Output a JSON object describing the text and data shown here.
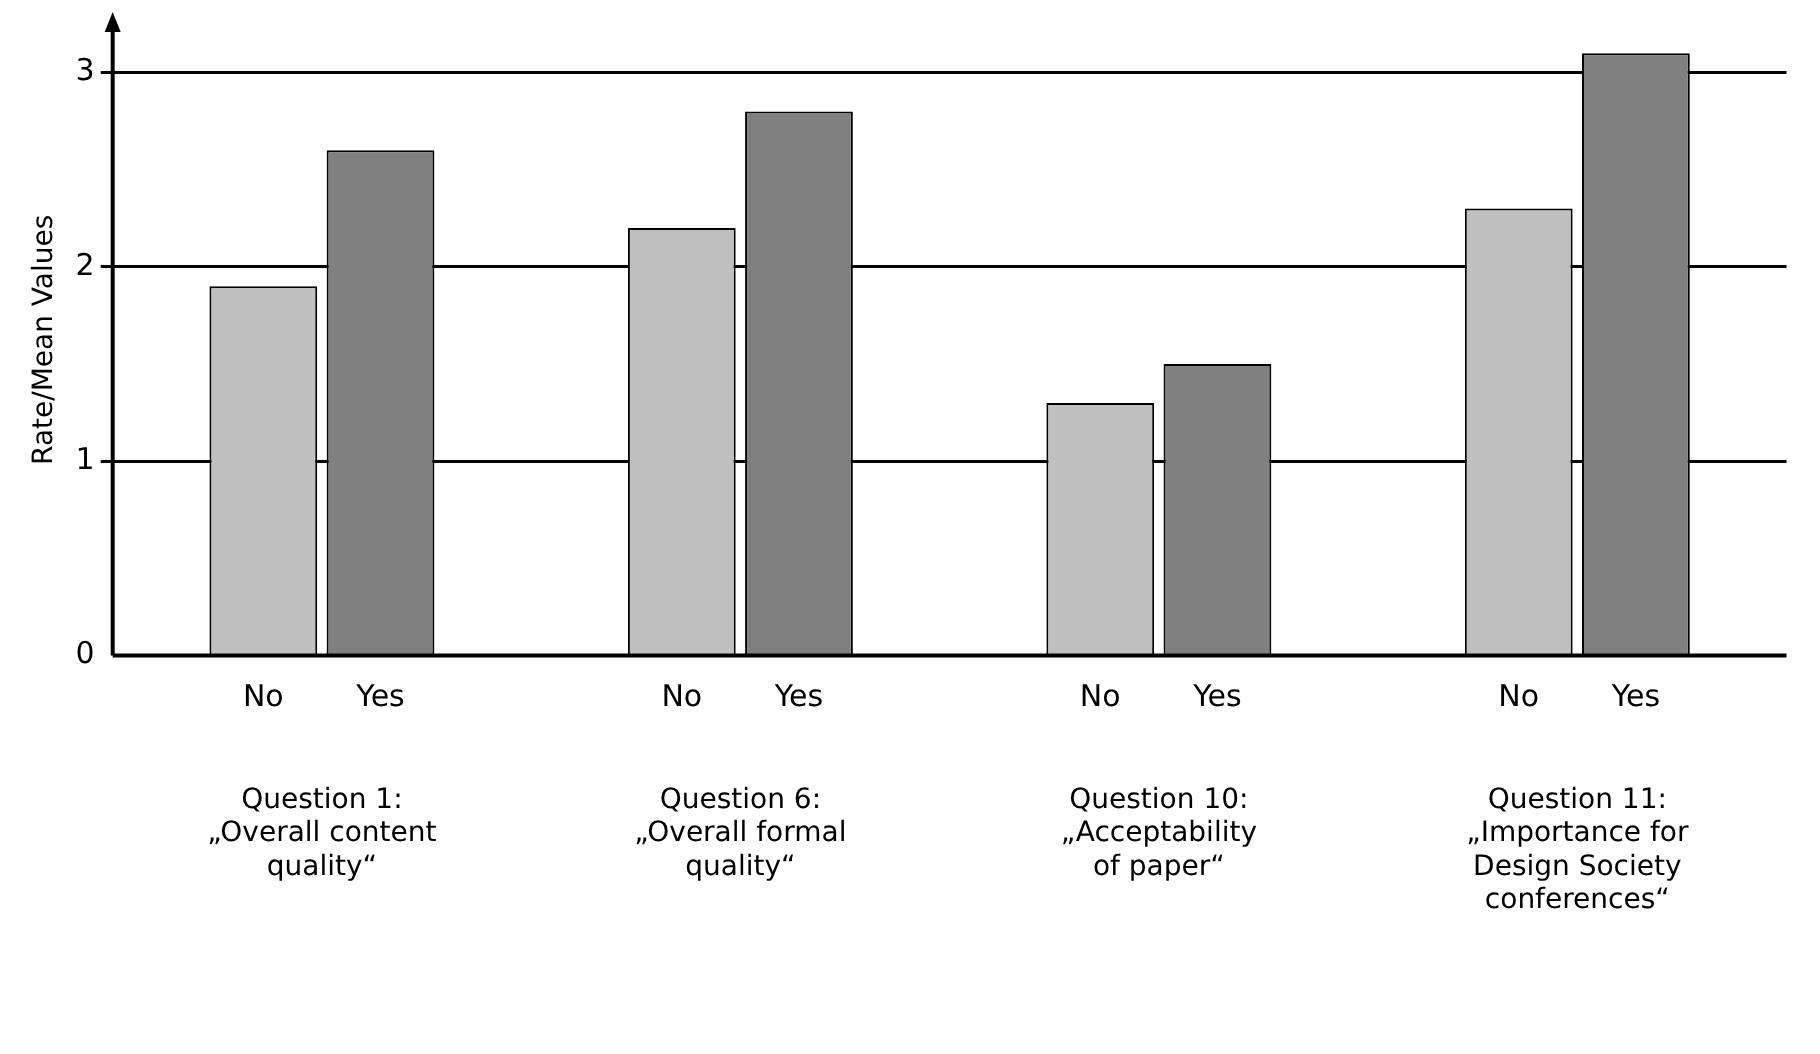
{
  "chart_data": {
    "type": "bar",
    "ylabel": "Rate/Mean Values",
    "categories": [
      "Question 1:\n„Overall content\nquality“",
      "Question 6:\n„Overall formal\nquality“",
      "Question 10:\n„Acceptability\nof paper“",
      "Question 11:\n„Importance for\nDesign Society\nconferences“"
    ],
    "series": [
      {
        "name": "No",
        "color": "#c0c0c0",
        "values": [
          1.9,
          2.2,
          1.3,
          2.3
        ]
      },
      {
        "name": "Yes",
        "color": "#808080",
        "values": [
          2.6,
          2.8,
          1.5,
          3.1
        ]
      }
    ],
    "ylim": [
      0,
      3.25
    ],
    "yticks": [
      0,
      1,
      2,
      3
    ],
    "grid": "y",
    "legend": false
  }
}
